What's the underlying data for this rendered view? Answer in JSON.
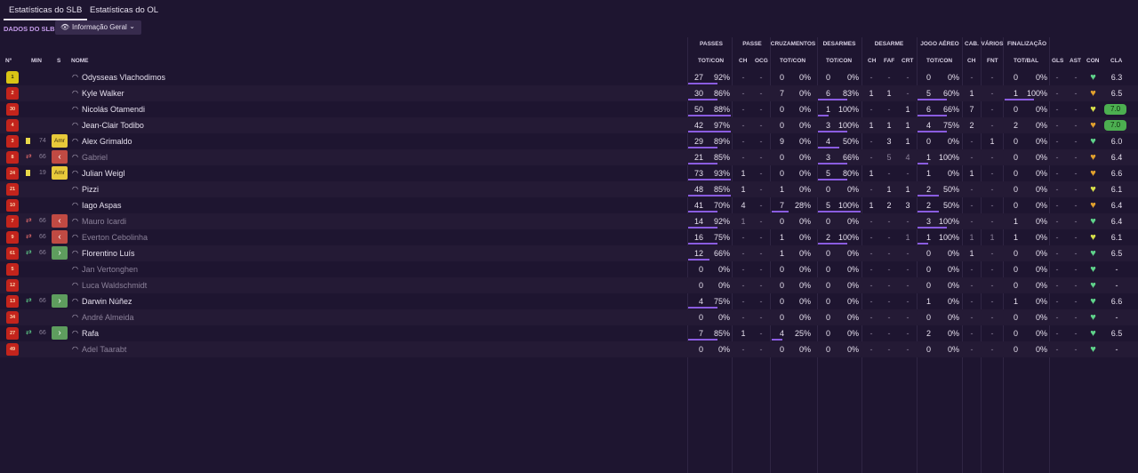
{
  "tabs": [
    {
      "label": "Estatísticas do SLB",
      "active": true
    },
    {
      "label": "Estatísticas do OL",
      "active": false
    }
  ],
  "section_label": "DADOS DO SLB",
  "view_select": {
    "value": "Informação Geral",
    "icon": "eye-icon"
  },
  "group_headers": [
    {
      "label": "PASSES",
      "x": 800
    },
    {
      "label": "PASSE",
      "x": 846
    },
    {
      "label": "CRUZAMENTOS",
      "x": 892
    },
    {
      "label": "DESARMES",
      "x": 944
    },
    {
      "label": "DESARME",
      "x": 1000
    },
    {
      "label": "JOGO AÉREO",
      "x": 1057
    },
    {
      "label": "CAB.",
      "x": 1093
    },
    {
      "label": "VÁRIOS",
      "x": 1116
    },
    {
      "label": "FINALIZAÇÃO",
      "x": 1155
    }
  ],
  "columns": {
    "num": "Nº",
    "min": "MIN",
    "s": "S",
    "name": "NOME",
    "passes": "TOT/CON",
    "ch": "CH",
    "ocg": "OCG",
    "cruz": "TOT/CON",
    "desarmes": "TOT/CON",
    "d_ch": "CH",
    "faf": "FAF",
    "crt": "CRT",
    "aereo": "TOT/CON",
    "cab_ch": "CH",
    "fnt": "FNT",
    "fin": "TOT/BAL",
    "gls": "GLS",
    "ast": "AST",
    "con": "CON",
    "cla": "CLA"
  },
  "players": [
    {
      "num": "1",
      "gk": true,
      "card": "",
      "sub": "",
      "min": "",
      "s": "",
      "name": "Odysseas Vlachodimos",
      "dim": false,
      "pas_t": "27",
      "pas_p": "92%",
      "ch": "-",
      "ocg": "-",
      "cr_t": "0",
      "cr_p": "0%",
      "de_t": "0",
      "de_p": "0%",
      "d_ch": "-",
      "faf": "-",
      "crt": "-",
      "ae_t": "0",
      "ae_p": "0%",
      "cab": "-",
      "fnt": "-",
      "fi_t": "0",
      "fi_p": "0%",
      "gls": "-",
      "ast": "-",
      "con": "green",
      "cla": "6.3",
      "cla_hi": false,
      "bars": {
        "pas": 0.69,
        "de": 0,
        "ae": 0,
        "fi": 0,
        "cr": 0
      }
    },
    {
      "num": "2",
      "gk": false,
      "card": "",
      "sub": "",
      "min": "",
      "s": "",
      "name": "Kyle Walker",
      "dim": false,
      "pas_t": "30",
      "pas_p": "86%",
      "ch": "-",
      "ocg": "-",
      "cr_t": "7",
      "cr_p": "0%",
      "de_t": "6",
      "de_p": "83%",
      "d_ch": "1",
      "faf": "1",
      "crt": "-",
      "ae_t": "5",
      "ae_p": "60%",
      "cab": "1",
      "fnt": "-",
      "fi_t": "1",
      "fi_p": "100%",
      "gls": "-",
      "ast": "-",
      "con": "orange",
      "cla": "6.5",
      "cla_hi": false,
      "bars": {
        "pas": 0.69,
        "de": 0.69,
        "ae": 0.69,
        "fi": 0.69,
        "cr": 0
      }
    },
    {
      "num": "30",
      "gk": false,
      "card": "",
      "sub": "",
      "min": "",
      "s": "",
      "name": "Nicolás Otamendi",
      "dim": false,
      "pas_t": "50",
      "pas_p": "88%",
      "ch": "-",
      "ocg": "-",
      "cr_t": "0",
      "cr_p": "0%",
      "de_t": "1",
      "de_p": "100%",
      "d_ch": "-",
      "faf": "-",
      "crt": "1",
      "ae_t": "6",
      "ae_p": "66%",
      "cab": "7",
      "fnt": "-",
      "fi_t": "0",
      "fi_p": "0%",
      "gls": "-",
      "ast": "-",
      "con": "yellow",
      "cla": "7.0",
      "cla_hi": true,
      "bars": {
        "pas": 1,
        "de": 0.25,
        "ae": 0.69,
        "fi": 0,
        "cr": 0
      }
    },
    {
      "num": "4",
      "gk": false,
      "card": "",
      "sub": "",
      "min": "",
      "s": "",
      "name": "Jean-Clair Todibo",
      "dim": false,
      "pas_t": "42",
      "pas_p": "97%",
      "ch": "-",
      "ocg": "-",
      "cr_t": "0",
      "cr_p": "0%",
      "de_t": "3",
      "de_p": "100%",
      "d_ch": "1",
      "faf": "1",
      "crt": "1",
      "ae_t": "4",
      "ae_p": "75%",
      "cab": "2",
      "fnt": "-",
      "fi_t": "2",
      "fi_p": "0%",
      "gls": "-",
      "ast": "-",
      "con": "orange",
      "cla": "7.0",
      "cla_hi": true,
      "bars": {
        "pas": 1,
        "de": 0.69,
        "ae": 0.69,
        "fi": 0,
        "cr": 0
      }
    },
    {
      "num": "3",
      "gk": false,
      "card": "yellow",
      "sub": "",
      "min": "74",
      "s": "amr",
      "name": "Alex Grimaldo",
      "dim": false,
      "pas_t": "29",
      "pas_p": "89%",
      "ch": "-",
      "ocg": "-",
      "cr_t": "9",
      "cr_p": "0%",
      "de_t": "4",
      "de_p": "50%",
      "d_ch": "-",
      "faf": "3",
      "crt": "1",
      "ae_t": "0",
      "ae_p": "0%",
      "cab": "-",
      "fnt": "1",
      "fi_t": "0",
      "fi_p": "0%",
      "gls": "-",
      "ast": "-",
      "con": "green",
      "cla": "6.0",
      "cla_hi": false,
      "bars": {
        "pas": 0.69,
        "de": 0.5,
        "ae": 0,
        "fi": 0,
        "cr": 0
      }
    },
    {
      "num": "8",
      "gk": false,
      "card": "",
      "sub": "out",
      "min": "66",
      "s": "out",
      "name": "Gabriel",
      "dim": true,
      "pas_t": "21",
      "pas_p": "85%",
      "ch": "-",
      "ocg": "-",
      "cr_t": "0",
      "cr_p": "0%",
      "de_t": "3",
      "de_p": "66%",
      "d_ch": "-",
      "faf": "5",
      "crt": "4",
      "ae_t": "1",
      "ae_p": "100%",
      "cab": "-",
      "fnt": "-",
      "fi_t": "0",
      "fi_p": "0%",
      "gls": "-",
      "ast": "-",
      "con": "orange",
      "cla": "6.4",
      "cla_hi": false,
      "bars": {
        "pas": 0.69,
        "de": 0.69,
        "ae": 0.25,
        "fi": 0,
        "cr": 0
      }
    },
    {
      "num": "24",
      "gk": false,
      "card": "yellow",
      "sub": "",
      "min": "19",
      "s": "amr",
      "name": "Julian Weigl",
      "dim": false,
      "pas_t": "73",
      "pas_p": "93%",
      "ch": "1",
      "ocg": "-",
      "cr_t": "0",
      "cr_p": "0%",
      "de_t": "5",
      "de_p": "80%",
      "d_ch": "1",
      "faf": "-",
      "crt": "-",
      "ae_t": "1",
      "ae_p": "0%",
      "cab": "1",
      "fnt": "-",
      "fi_t": "0",
      "fi_p": "0%",
      "gls": "-",
      "ast": "-",
      "con": "orange",
      "cla": "6.6",
      "cla_hi": false,
      "bars": {
        "pas": 1,
        "de": 0.69,
        "ae": 0,
        "fi": 0,
        "cr": 0
      }
    },
    {
      "num": "21",
      "gk": false,
      "card": "",
      "sub": "",
      "min": "",
      "s": "",
      "name": "Pizzi",
      "dim": false,
      "pas_t": "48",
      "pas_p": "85%",
      "ch": "1",
      "ocg": "-",
      "cr_t": "1",
      "cr_p": "0%",
      "de_t": "0",
      "de_p": "0%",
      "d_ch": "-",
      "faf": "1",
      "crt": "1",
      "ae_t": "2",
      "ae_p": "50%",
      "cab": "-",
      "fnt": "-",
      "fi_t": "0",
      "fi_p": "0%",
      "gls": "-",
      "ast": "-",
      "con": "yellow",
      "cla": "6.1",
      "cla_hi": false,
      "bars": {
        "pas": 1,
        "de": 0,
        "ae": 0.5,
        "fi": 0,
        "cr": 0
      }
    },
    {
      "num": "10",
      "gk": false,
      "card": "",
      "sub": "",
      "min": "",
      "s": "",
      "name": "Iago Aspas",
      "dim": false,
      "pas_t": "41",
      "pas_p": "70%",
      "ch": "4",
      "ocg": "-",
      "cr_t": "7",
      "cr_p": "28%",
      "de_t": "5",
      "de_p": "100%",
      "d_ch": "1",
      "faf": "2",
      "crt": "3",
      "ae_t": "2",
      "ae_p": "50%",
      "cab": "-",
      "fnt": "-",
      "fi_t": "0",
      "fi_p": "0%",
      "gls": "-",
      "ast": "-",
      "con": "orange",
      "cla": "6.4",
      "cla_hi": false,
      "bars": {
        "pas": 0.69,
        "de": 1,
        "ae": 0.5,
        "fi": 0,
        "cr": 0.4
      }
    },
    {
      "num": "7",
      "gk": false,
      "card": "",
      "sub": "out",
      "min": "66",
      "s": "out",
      "name": "Mauro Icardi",
      "dim": true,
      "pas_t": "14",
      "pas_p": "92%",
      "ch": "1",
      "ocg": "-",
      "cr_t": "0",
      "cr_p": "0%",
      "de_t": "0",
      "de_p": "0%",
      "d_ch": "-",
      "faf": "-",
      "crt": "-",
      "ae_t": "3",
      "ae_p": "100%",
      "cab": "-",
      "fnt": "-",
      "fi_t": "1",
      "fi_p": "0%",
      "gls": "-",
      "ast": "-",
      "con": "green",
      "cla": "6.4",
      "cla_hi": false,
      "bars": {
        "pas": 0.69,
        "de": 0,
        "ae": 0.69,
        "fi": 0,
        "cr": 0
      }
    },
    {
      "num": "9",
      "gk": false,
      "card": "",
      "sub": "out",
      "min": "66",
      "s": "out",
      "name": "Everton Cebolinha",
      "dim": true,
      "pas_t": "16",
      "pas_p": "75%",
      "ch": "-",
      "ocg": "-",
      "cr_t": "1",
      "cr_p": "0%",
      "de_t": "2",
      "de_p": "100%",
      "d_ch": "-",
      "faf": "-",
      "crt": "1",
      "ae_t": "1",
      "ae_p": "100%",
      "cab": "1",
      "fnt": "1",
      "fi_t": "1",
      "fi_p": "0%",
      "gls": "-",
      "ast": "-",
      "con": "yellow",
      "cla": "6.1",
      "cla_hi": false,
      "bars": {
        "pas": 0.69,
        "de": 0.69,
        "ae": 0.25,
        "fi": 0,
        "cr": 0
      }
    },
    {
      "num": "61",
      "gk": false,
      "card": "",
      "sub": "in",
      "min": "66",
      "s": "in",
      "name": "Florentino Luís",
      "dim": false,
      "pas_t": "12",
      "pas_p": "66%",
      "ch": "-",
      "ocg": "-",
      "cr_t": "1",
      "cr_p": "0%",
      "de_t": "0",
      "de_p": "0%",
      "d_ch": "-",
      "faf": "-",
      "crt": "-",
      "ae_t": "0",
      "ae_p": "0%",
      "cab": "1",
      "fnt": "-",
      "fi_t": "0",
      "fi_p": "0%",
      "gls": "-",
      "ast": "-",
      "con": "green",
      "cla": "6.5",
      "cla_hi": false,
      "bars": {
        "pas": 0.5,
        "de": 0,
        "ae": 0,
        "fi": 0,
        "cr": 0
      }
    },
    {
      "num": "5",
      "gk": false,
      "card": "",
      "sub": "",
      "min": "",
      "s": "",
      "name": "Jan Vertonghen",
      "dim": true,
      "pas_t": "0",
      "pas_p": "0%",
      "ch": "-",
      "ocg": "-",
      "cr_t": "0",
      "cr_p": "0%",
      "de_t": "0",
      "de_p": "0%",
      "d_ch": "-",
      "faf": "-",
      "crt": "-",
      "ae_t": "0",
      "ae_p": "0%",
      "cab": "-",
      "fnt": "-",
      "fi_t": "0",
      "fi_p": "0%",
      "gls": "-",
      "ast": "-",
      "con": "green",
      "cla": "-",
      "cla_hi": false,
      "bars": {
        "pas": 0,
        "de": 0,
        "ae": 0,
        "fi": 0,
        "cr": 0
      }
    },
    {
      "num": "12",
      "gk": false,
      "card": "",
      "sub": "",
      "min": "",
      "s": "",
      "name": "Luca Waldschmidt",
      "dim": true,
      "pas_t": "0",
      "pas_p": "0%",
      "ch": "-",
      "ocg": "-",
      "cr_t": "0",
      "cr_p": "0%",
      "de_t": "0",
      "de_p": "0%",
      "d_ch": "-",
      "faf": "-",
      "crt": "-",
      "ae_t": "0",
      "ae_p": "0%",
      "cab": "-",
      "fnt": "-",
      "fi_t": "0",
      "fi_p": "0%",
      "gls": "-",
      "ast": "-",
      "con": "green",
      "cla": "-",
      "cla_hi": false,
      "bars": {
        "pas": 0,
        "de": 0,
        "ae": 0,
        "fi": 0,
        "cr": 0
      }
    },
    {
      "num": "13",
      "gk": false,
      "card": "",
      "sub": "in",
      "min": "66",
      "s": "in",
      "name": "Darwin Núñez",
      "dim": false,
      "pas_t": "4",
      "pas_p": "75%",
      "ch": "-",
      "ocg": "-",
      "cr_t": "0",
      "cr_p": "0%",
      "de_t": "0",
      "de_p": "0%",
      "d_ch": "-",
      "faf": "-",
      "crt": "-",
      "ae_t": "1",
      "ae_p": "0%",
      "cab": "-",
      "fnt": "-",
      "fi_t": "1",
      "fi_p": "0%",
      "gls": "-",
      "ast": "-",
      "con": "green",
      "cla": "6.6",
      "cla_hi": false,
      "bars": {
        "pas": 0.69,
        "de": 0,
        "ae": 0,
        "fi": 0,
        "cr": 0
      }
    },
    {
      "num": "34",
      "gk": false,
      "card": "",
      "sub": "",
      "min": "",
      "s": "",
      "name": "André Almeida",
      "dim": true,
      "pas_t": "0",
      "pas_p": "0%",
      "ch": "-",
      "ocg": "-",
      "cr_t": "0",
      "cr_p": "0%",
      "de_t": "0",
      "de_p": "0%",
      "d_ch": "-",
      "faf": "-",
      "crt": "-",
      "ae_t": "0",
      "ae_p": "0%",
      "cab": "-",
      "fnt": "-",
      "fi_t": "0",
      "fi_p": "0%",
      "gls": "-",
      "ast": "-",
      "con": "green",
      "cla": "-",
      "cla_hi": false,
      "bars": {
        "pas": 0,
        "de": 0,
        "ae": 0,
        "fi": 0,
        "cr": 0
      }
    },
    {
      "num": "27",
      "gk": false,
      "card": "",
      "sub": "in",
      "min": "66",
      "s": "in",
      "name": "Rafa",
      "dim": false,
      "pas_t": "7",
      "pas_p": "85%",
      "ch": "1",
      "ocg": "-",
      "cr_t": "4",
      "cr_p": "25%",
      "de_t": "0",
      "de_p": "0%",
      "d_ch": "-",
      "faf": "-",
      "crt": "-",
      "ae_t": "2",
      "ae_p": "0%",
      "cab": "-",
      "fnt": "-",
      "fi_t": "0",
      "fi_p": "0%",
      "gls": "-",
      "ast": "-",
      "con": "green",
      "cla": "6.5",
      "cla_hi": false,
      "bars": {
        "pas": 0.69,
        "de": 0,
        "ae": 0,
        "fi": 0,
        "cr": 0.25
      }
    },
    {
      "num": "49",
      "gk": false,
      "card": "",
      "sub": "",
      "min": "",
      "s": "",
      "name": "Adel Taarabt",
      "dim": true,
      "pas_t": "0",
      "pas_p": "0%",
      "ch": "-",
      "ocg": "-",
      "cr_t": "0",
      "cr_p": "0%",
      "de_t": "0",
      "de_p": "0%",
      "d_ch": "-",
      "faf": "-",
      "crt": "-",
      "ae_t": "0",
      "ae_p": "0%",
      "cab": "-",
      "fnt": "-",
      "fi_t": "0",
      "fi_p": "0%",
      "gls": "-",
      "ast": "-",
      "con": "green",
      "cla": "-",
      "cla_hi": false,
      "bars": {
        "pas": 0,
        "de": 0,
        "ae": 0,
        "fi": 0,
        "cr": 0
      }
    }
  ],
  "colors": {
    "accent": "#8a5ce0",
    "con_green": "#5fd38a",
    "con_yellow": "#d7e04a",
    "con_orange": "#e2a12d",
    "rating_hi": "#4caf50"
  },
  "labels": {
    "amr": "Amr"
  }
}
